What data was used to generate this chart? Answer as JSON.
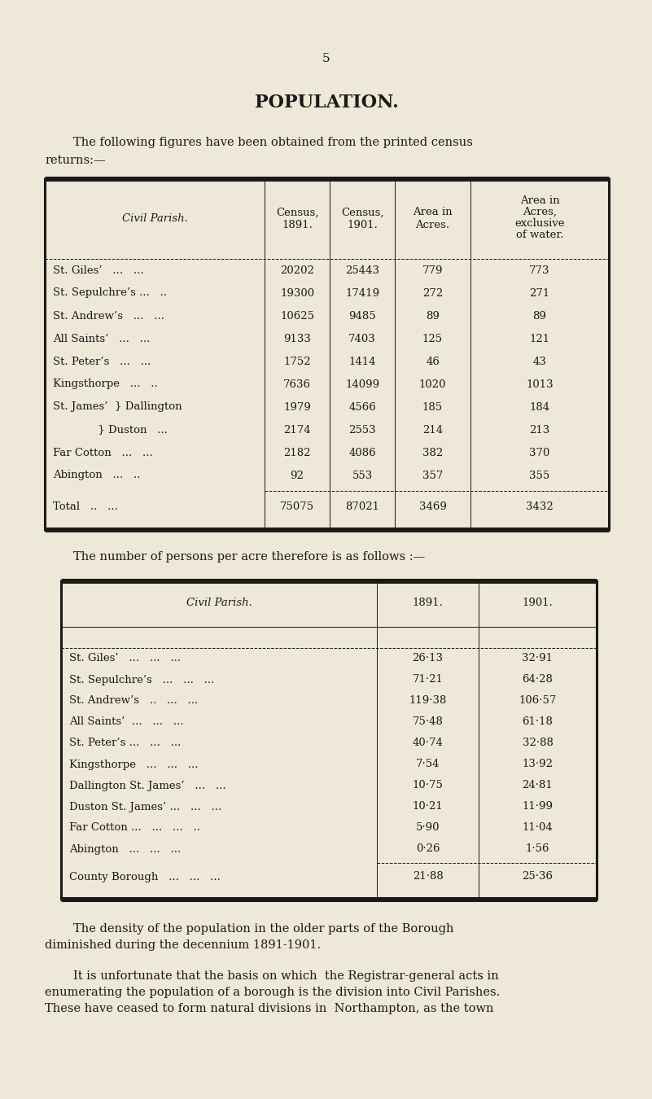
{
  "bg_color": "#ede8d8",
  "page_number": "5",
  "title": "POPULATION.",
  "intro_line1": "The following figures have been obtained from the printed census",
  "intro_line2": "returns:—",
  "table1_col_headers": [
    "Civil Parish.",
    "Census,\n1891.",
    "Census,\n1901.",
    "Area in\nAcres.",
    "Area in\nAcres,\nexclusive\nof water."
  ],
  "table1_rows": [
    [
      "St. Giles’   ...   ...",
      "20202",
      "25443",
      "779",
      "773"
    ],
    [
      "St. Sepulchre’s ...   ..",
      "19300",
      "17419",
      "272",
      "271"
    ],
    [
      "St. Andrew’s   ...   ...",
      "10625",
      "9485",
      "89",
      "89"
    ],
    [
      "All Saints’   ...   ...",
      "9133",
      "7403",
      "125",
      "121"
    ],
    [
      "St. Peter’s   ...   ...",
      "1752",
      "1414",
      "46",
      "43"
    ],
    [
      "Kingsthorpe   ...   ..",
      "7636",
      "14099",
      "1020",
      "1013"
    ],
    [
      "St. James’  } Dallington",
      "1979",
      "4566",
      "185",
      "184"
    ],
    [
      "             } Duston   ...",
      "2174",
      "2553",
      "214",
      "213"
    ],
    [
      "Far Cotton   ...   ...",
      "2182",
      "4086",
      "382",
      "370"
    ],
    [
      "Abington   ...   ..",
      "92",
      "553",
      "357",
      "355"
    ]
  ],
  "table1_total": [
    "Total   ..   ...",
    "75075",
    "87021",
    "3469",
    "3432"
  ],
  "middle_text": "The number of persons per acre therefore is as follows :—",
  "table2_col_headers": [
    "Civil Parish.",
    "1891.",
    "1901."
  ],
  "table2_rows": [
    [
      "St. Giles’   ...   ...   ...",
      "26·13",
      "32·91"
    ],
    [
      "St. Sepulchre’s   ...   ...   ...",
      "71·21",
      "64·28"
    ],
    [
      "St. Andrew’s   ..   ...   ...",
      "119·38",
      "106·57"
    ],
    [
      "All Saints’  ...   ...   ...",
      "75·48",
      "61·18"
    ],
    [
      "St. Peter’s ...   ...   ...",
      "40·74",
      "32·88"
    ],
    [
      "Kingsthorpe   ...   ...   ...",
      "7·54",
      "13·92"
    ],
    [
      "Dallington St. James’   ...   ...",
      "10·75",
      "24·81"
    ],
    [
      "Duston St. James’ ...   ...   ...",
      "10·21",
      "11·99"
    ],
    [
      "Far Cotton ...   ...   ...   ..",
      "5·90",
      "11·04"
    ],
    [
      "Abington   ...   ...   ...",
      "0·26",
      "1·56"
    ]
  ],
  "table2_total": [
    "County Borough   ...   ...   ...",
    "21·88",
    "25·36"
  ],
  "footer1_line1": "The density of the population in the older parts of the Borough",
  "footer1_line2": "diminished during the decennium 1891-1901.",
  "footer2_line1": "It is unfortunate that the basis on which  the Registrar-general acts in",
  "footer2_line2": "enumerating the population of a borough is the division into Civil Parishes.",
  "footer2_line3": "These have ceased to form natural divisions in  Northampton, as the town"
}
